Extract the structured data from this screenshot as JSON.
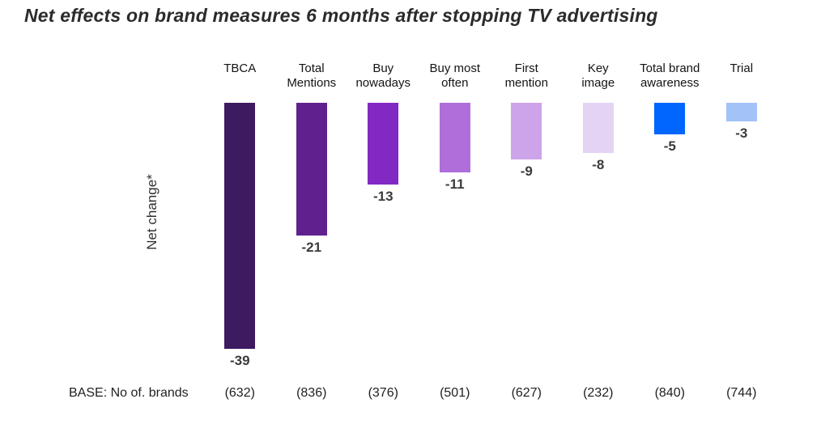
{
  "page": {
    "background": "#ffffff"
  },
  "chart_data": {
    "type": "bar",
    "title": "Net effects on brand measures 6 months after stopping TV advertising",
    "ylabel": "Net change*",
    "xlabel": "",
    "base_row_label": "BASE: No of. brands",
    "categories": [
      "TBCA",
      "Total Mentions",
      "Buy nowadays",
      "Buy most often",
      "First mention",
      "Key image",
      "Total brand awareness",
      "Trial"
    ],
    "category_lines": [
      [
        "TBCA"
      ],
      [
        "Total",
        "Mentions"
      ],
      [
        "Buy",
        "nowadays"
      ],
      [
        "Buy most",
        "often"
      ],
      [
        "First",
        "mention"
      ],
      [
        "Key",
        "image"
      ],
      [
        "Total brand",
        "awareness"
      ],
      [
        "Trial"
      ]
    ],
    "values": [
      -39,
      -21,
      -13,
      -11,
      -9,
      -8,
      -5,
      -3
    ],
    "value_labels": [
      "-39",
      "-21",
      "-13",
      "-11",
      "-9",
      "-8",
      "-5",
      "-3"
    ],
    "bases": [
      "(632)",
      "(836)",
      "(376)",
      "(501)",
      "(627)",
      "(232)",
      "(840)",
      "(744)"
    ],
    "bar_colors": [
      "#3e1a61",
      "#60218f",
      "#8229c3",
      "#af6eda",
      "#cda4e9",
      "#e5d3f3",
      "#0066fe",
      "#a3c2f8"
    ],
    "ylim": [
      -39,
      0
    ],
    "grid": false,
    "legend": "none",
    "orientation": "vertical-downward-from-top-baseline"
  }
}
